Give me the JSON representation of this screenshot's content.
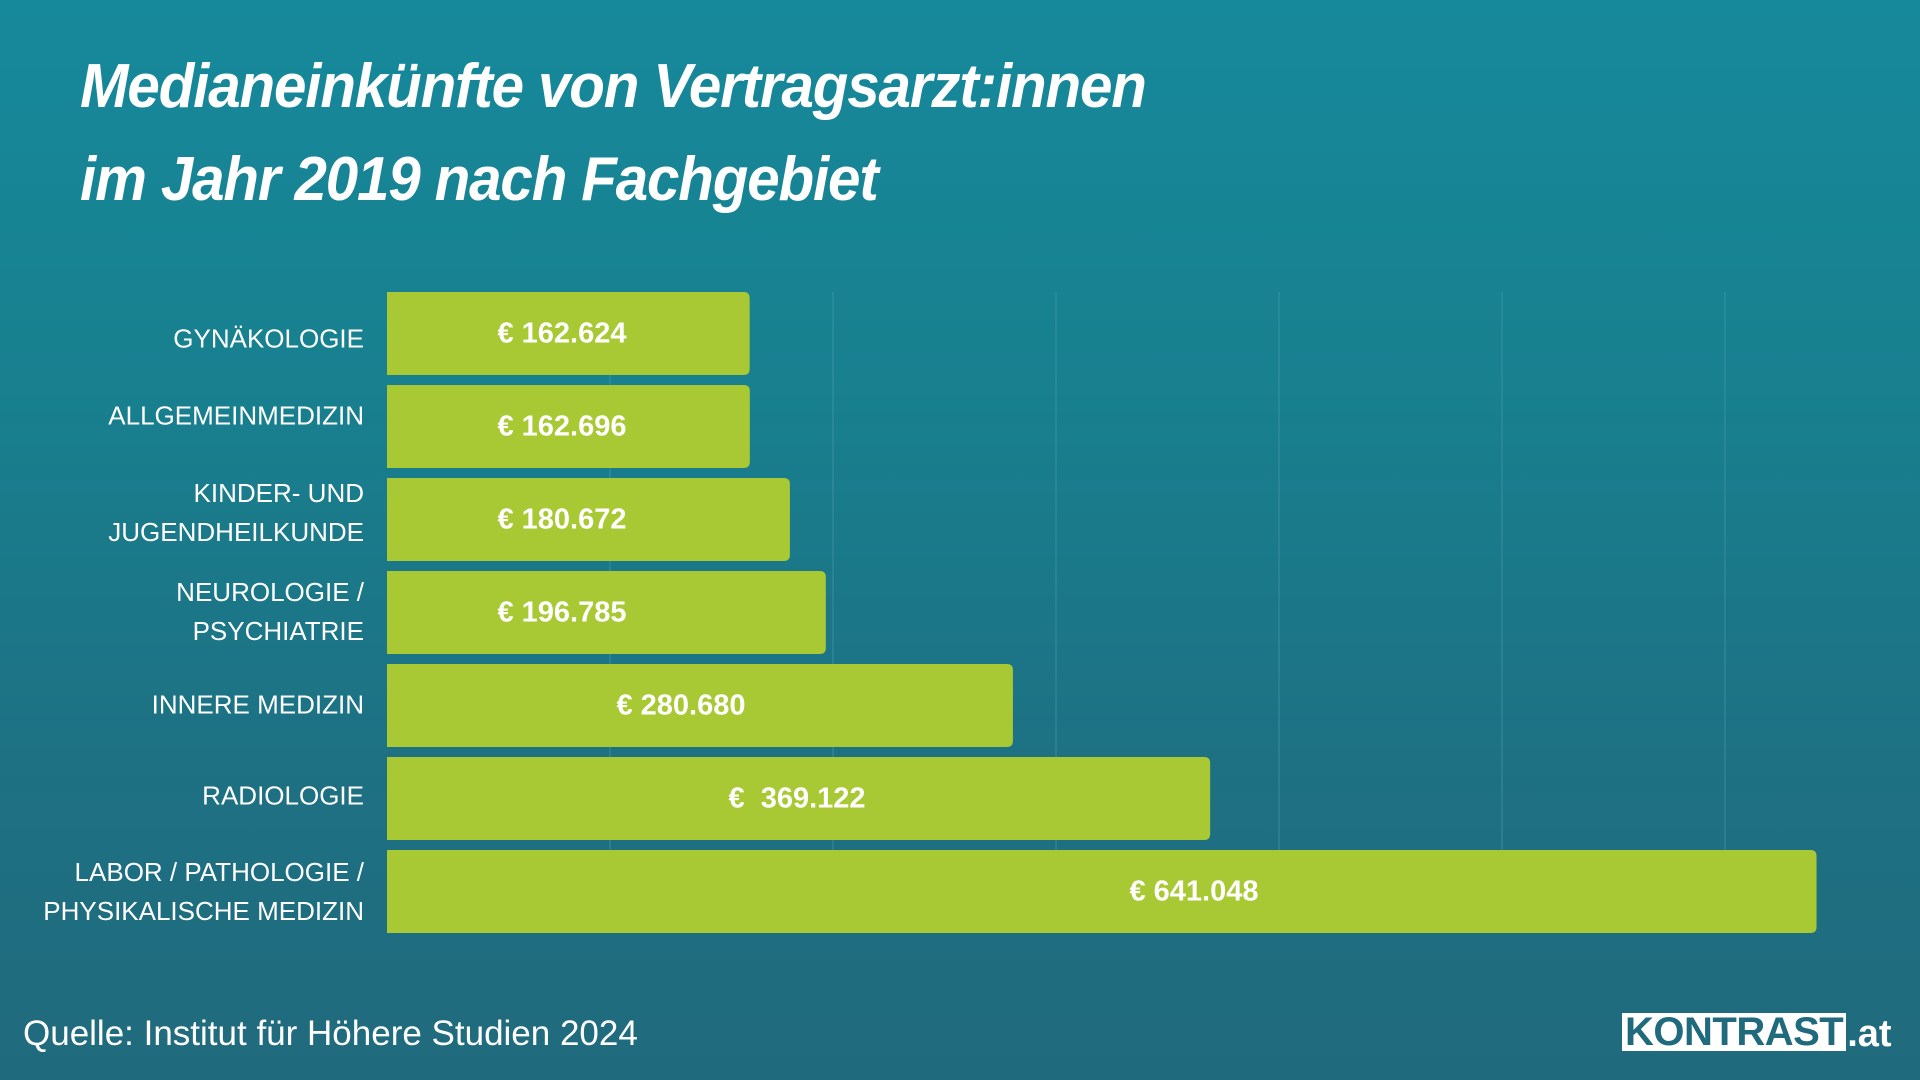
{
  "title": {
    "line1": "Medianeinkünfte von Vertragsarzt:innen",
    "line2": "im Jahr 2019 nach Fachgebiet"
  },
  "colors": {
    "background_top": "#16899b",
    "background_bottom": "#206a7d",
    "bar": "#a8c934",
    "gridline": "#4fa3b2",
    "text": "#ffffff",
    "logo_text": "#1f6a7c"
  },
  "chart_data": {
    "type": "bar",
    "orientation": "horizontal",
    "title": "Medianeinkünfte von Vertragsarzt:innen im Jahr 2019 nach Fachgebiet",
    "categories": [
      [
        "GYNÄKOLOGIE"
      ],
      [
        "ALLGEMEINMEDIZIN"
      ],
      [
        "KINDER- UND",
        "JUGENDHEILKUNDE"
      ],
      [
        "NEUROLOGIE /",
        "PSYCHIATRIE"
      ],
      [
        "INNERE MEDIZIN"
      ],
      [
        "RADIOLOGIE"
      ],
      [
        "LABOR / PATHOLOGIE /",
        "PHYSIKALISCHE MEDIZIN"
      ]
    ],
    "values": [
      162624,
      162696,
      180672,
      196785,
      280680,
      369122,
      641048
    ],
    "value_labels": [
      "€ 162.624",
      "€ 162.696",
      "€ 180.672",
      "€ 196.785",
      "€ 280.680",
      "€  369.122",
      "€ 641.048"
    ],
    "unit": "EUR",
    "xlim": [
      0,
      650000
    ],
    "gridline_step": 100000,
    "grid": true,
    "xlabel": "",
    "ylabel": "",
    "legend": "none"
  },
  "footer": {
    "source": "Quelle: Institut für Höhere Studien 2024",
    "logo_main": "KONTRAST",
    "logo_tld": ".at"
  }
}
